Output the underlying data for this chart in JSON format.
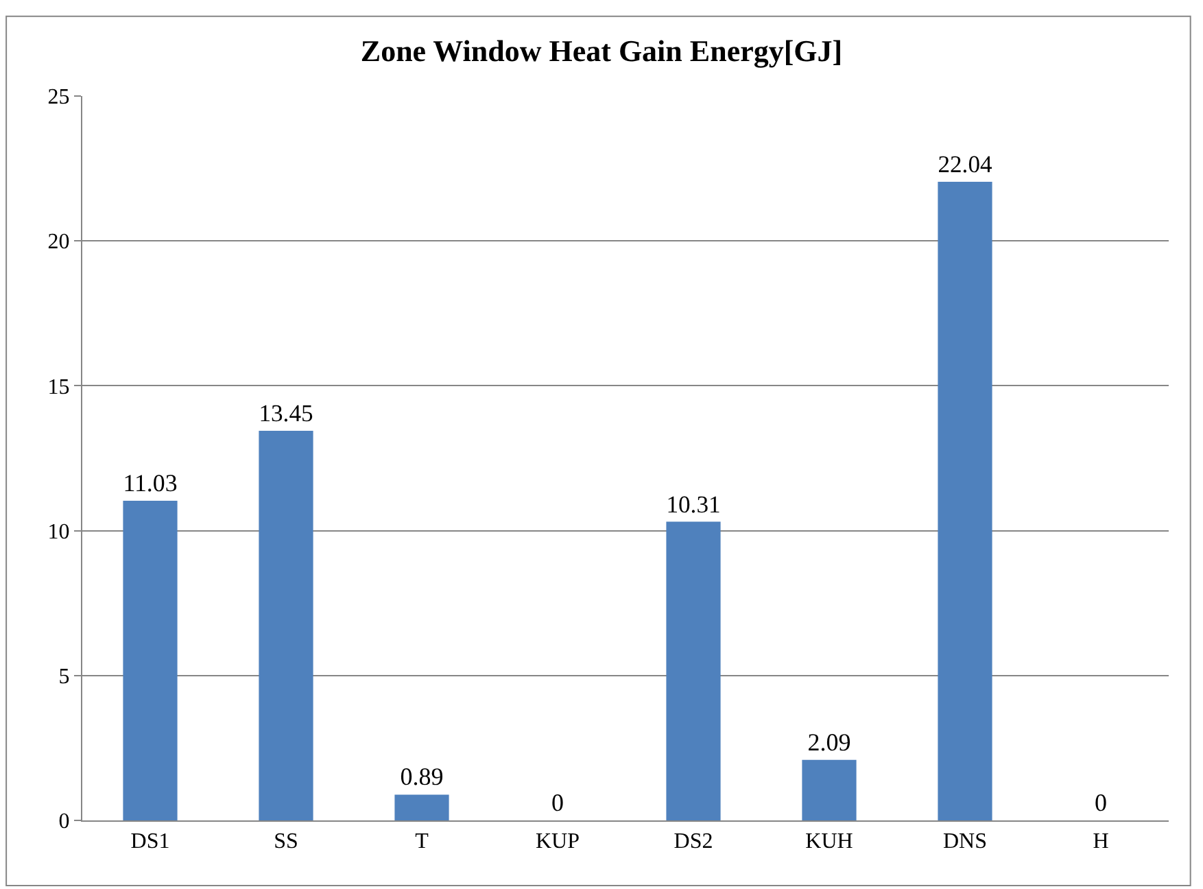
{
  "chart_data": {
    "type": "bar",
    "title": "Zone Window Heat Gain Energy[GJ]",
    "categories": [
      "DS1",
      "SS",
      "T",
      "KUP",
      "DS2",
      "KUH",
      "DNS",
      "H"
    ],
    "values": [
      11.03,
      13.45,
      0.89,
      0,
      10.31,
      2.09,
      22.04,
      0
    ],
    "value_labels": [
      "11.03",
      "13.45",
      "0.89",
      "0",
      "10.31",
      "2.09",
      "22.04",
      "0"
    ],
    "color": "#4f81bd",
    "ylim": [
      0,
      25
    ],
    "yticks": [
      0,
      5,
      10,
      15,
      20,
      25
    ],
    "grid": "y",
    "legend": false
  }
}
